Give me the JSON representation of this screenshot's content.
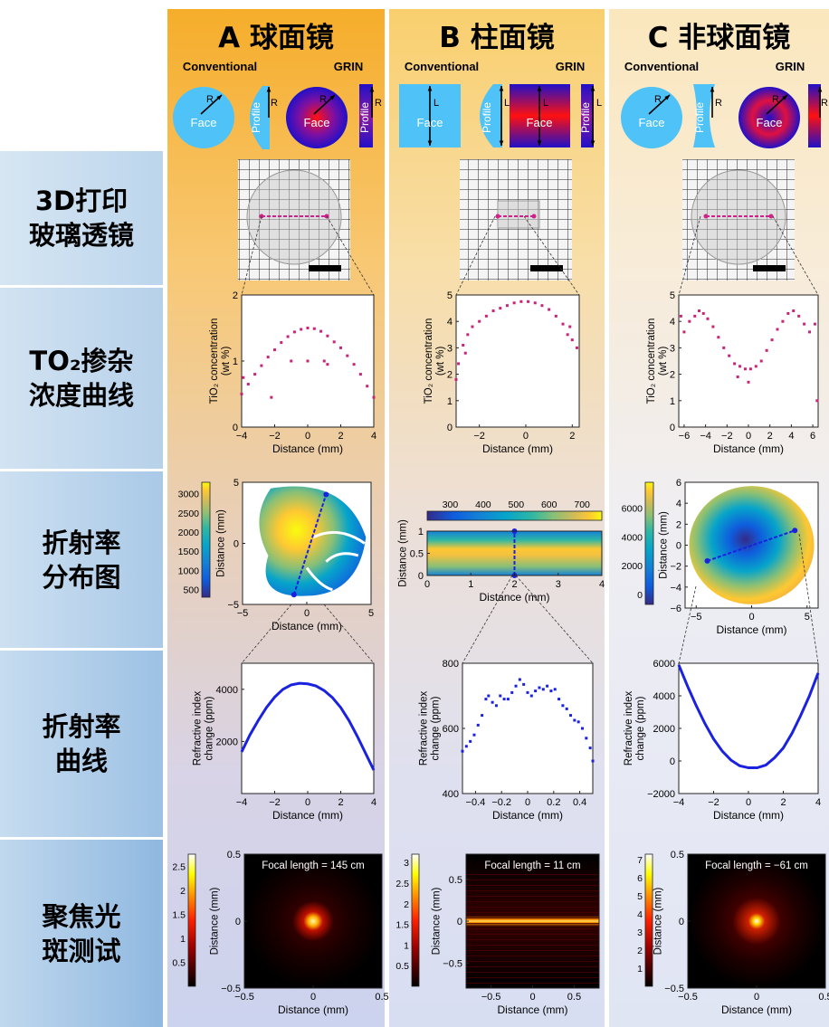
{
  "headers": [
    {
      "title": "A 球面镜",
      "conventional": "Conventional",
      "grin": "GRIN"
    },
    {
      "title": "B 柱面镜",
      "conventional": "Conventional",
      "grin": "GRIN"
    },
    {
      "title": "C 非球面镜",
      "conventional": "Conventional",
      "grin": "GRIN"
    }
  ],
  "icon_labels": {
    "face": "Face",
    "profile": "Profile",
    "radius": "R",
    "length": "L"
  },
  "row_labels": [
    {
      "l1": "3D打印",
      "l2": "玻璃透镜"
    },
    {
      "l1": "TO₂掺杂",
      "l2": "浓度曲线"
    },
    {
      "l1": "折射率",
      "l2": "分布图"
    },
    {
      "l1": "折射率",
      "l2": "曲线"
    },
    {
      "l1": "聚焦光",
      "l2": "斑测试"
    }
  ],
  "colors": {
    "light_blue": "#4fc3f7",
    "grin_blue": "#2010c8",
    "grin_red": "#ff1010",
    "magenta": "#c8247a",
    "blue": "#1a22e0"
  },
  "chart_data": [
    {
      "id": "conc_A",
      "type": "scatter",
      "xlabel": "Distance (mm)",
      "ylabel": [
        "TiO₂ concentration",
        "(wt %)"
      ],
      "xlim": [
        -4,
        4
      ],
      "ylim": [
        0,
        2
      ],
      "xticks": [
        -4,
        -2,
        0,
        2,
        4
      ],
      "yticks": [
        0,
        1,
        2
      ],
      "color": "#c8247a",
      "points": [
        [
          -4,
          0.5
        ],
        [
          -3.6,
          0.65
        ],
        [
          -3.2,
          0.8
        ],
        [
          -2.8,
          0.93
        ],
        [
          -2.4,
          1.06
        ],
        [
          -2,
          1.17
        ],
        [
          -1.6,
          1.28
        ],
        [
          -1.2,
          1.37
        ],
        [
          -0.8,
          1.44
        ],
        [
          -0.4,
          1.48
        ],
        [
          0,
          1.5
        ],
        [
          0.4,
          1.49
        ],
        [
          0.8,
          1.45
        ],
        [
          1.2,
          1.38
        ],
        [
          1.6,
          1.29
        ],
        [
          2,
          1.2
        ],
        [
          2.4,
          1.08
        ],
        [
          2.8,
          0.95
        ],
        [
          3.2,
          0.8
        ],
        [
          3.6,
          0.62
        ],
        [
          4,
          0.45
        ],
        [
          -3.9,
          0.75
        ],
        [
          -2.2,
          0.45
        ],
        [
          -1,
          1.0
        ],
        [
          0,
          1.0
        ],
        [
          1,
          1.0
        ],
        [
          1.2,
          0.95
        ]
      ]
    },
    {
      "id": "conc_B",
      "type": "scatter",
      "xlabel": "Distance (mm)",
      "ylabel": [
        "TiO₂ concentration",
        "(wt %)"
      ],
      "xlim": [
        -3,
        2.3
      ],
      "ylim": [
        0,
        5
      ],
      "xticks": [
        -2,
        0,
        2
      ],
      "yticks": [
        0,
        1,
        2,
        3,
        4,
        5
      ],
      "color": "#c8247a",
      "points": [
        [
          -3,
          1.8
        ],
        [
          -2.9,
          2.4
        ],
        [
          -2.7,
          3.1
        ],
        [
          -2.5,
          3.5
        ],
        [
          -2.3,
          3.8
        ],
        [
          -2,
          4.0
        ],
        [
          -1.7,
          4.2
        ],
        [
          -1.4,
          4.4
        ],
        [
          -1.1,
          4.5
        ],
        [
          -0.8,
          4.6
        ],
        [
          -0.5,
          4.7
        ],
        [
          -0.2,
          4.75
        ],
        [
          0.1,
          4.75
        ],
        [
          0.4,
          4.7
        ],
        [
          0.7,
          4.6
        ],
        [
          1,
          4.45
        ],
        [
          1.3,
          4.2
        ],
        [
          1.6,
          3.9
        ],
        [
          1.8,
          3.5
        ],
        [
          2,
          3.3
        ],
        [
          2.2,
          3.0
        ],
        [
          1.9,
          3.8
        ],
        [
          -2.6,
          2.8
        ]
      ]
    },
    {
      "id": "conc_C",
      "type": "scatter",
      "xlabel": "Distance (mm)",
      "ylabel": [
        "TiO₂ concentration",
        "(wt %)"
      ],
      "xlim": [
        -6.5,
        6.5
      ],
      "ylim": [
        0,
        5
      ],
      "xticks": [
        -6,
        -4,
        -2,
        0,
        2,
        4,
        6
      ],
      "yticks": [
        0,
        1,
        2,
        3,
        4,
        5
      ],
      "color": "#c8247a",
      "points": [
        [
          -6.3,
          4.2
        ],
        [
          -6,
          3.6
        ],
        [
          -5.5,
          4.0
        ],
        [
          -5,
          4.2
        ],
        [
          -4.6,
          4.4
        ],
        [
          -4.2,
          4.3
        ],
        [
          -3.8,
          4.1
        ],
        [
          -3.3,
          3.8
        ],
        [
          -2.8,
          3.4
        ],
        [
          -2.3,
          3.0
        ],
        [
          -1.8,
          2.7
        ],
        [
          -1.3,
          2.4
        ],
        [
          -0.8,
          2.3
        ],
        [
          -0.3,
          2.2
        ],
        [
          0.2,
          2.2
        ],
        [
          0.7,
          2.3
        ],
        [
          1.2,
          2.5
        ],
        [
          1.7,
          2.9
        ],
        [
          2.2,
          3.3
        ],
        [
          2.7,
          3.7
        ],
        [
          3.2,
          4.0
        ],
        [
          3.7,
          4.3
        ],
        [
          4.2,
          4.4
        ],
        [
          4.7,
          4.2
        ],
        [
          5.2,
          3.9
        ],
        [
          5.7,
          3.6
        ],
        [
          6.2,
          3.9
        ],
        [
          6.4,
          1.0
        ],
        [
          0,
          1.7
        ],
        [
          -1,
          1.9
        ]
      ]
    },
    {
      "id": "map_A",
      "type": "heatmap",
      "xlabel": "Distance (mm)",
      "ylabel": "Distance (mm)",
      "xlim": [
        -5,
        5
      ],
      "ylim": [
        -5,
        5
      ],
      "xticks": [
        -5,
        0,
        5
      ],
      "yticks": [
        -5,
        0,
        5
      ],
      "colormap": "parula",
      "crange": [
        300,
        3300
      ],
      "cticks": [
        500,
        1000,
        1500,
        2000,
        2500,
        3000
      ]
    },
    {
      "id": "map_B",
      "type": "heatmap",
      "xlabel": "Distance (mm)",
      "ylabel": "Distance (mm)",
      "xlim": [
        0,
        4
      ],
      "ylim": [
        0,
        1
      ],
      "xticks": [
        0,
        1,
        2,
        3,
        4
      ],
      "yticks": [
        0,
        0.5,
        1
      ],
      "colormap": "parula",
      "crange": [
        230,
        760
      ],
      "cticks": [
        300,
        400,
        500,
        600,
        700
      ]
    },
    {
      "id": "map_C",
      "type": "heatmap",
      "xlabel": "Distance (mm)",
      "ylabel": "Distance (mm)",
      "xlim": [
        -6,
        6
      ],
      "ylim": [
        -6,
        6
      ],
      "xticks": [
        -5,
        0,
        5
      ],
      "yticks": [
        -6,
        -4,
        -2,
        0,
        2,
        4,
        6
      ],
      "colormap": "parula",
      "crange": [
        -700,
        7800
      ],
      "cticks": [
        0,
        2000,
        4000,
        6000
      ]
    },
    {
      "id": "ri_A",
      "type": "line",
      "xlabel": "Distance (mm)",
      "ylabel": [
        "Refractive index",
        "change (ppm)"
      ],
      "xlim": [
        -4,
        4
      ],
      "ylim": [
        0,
        5000
      ],
      "xticks": [
        -4,
        -2,
        0,
        2,
        4
      ],
      "yticks": [
        2000,
        4000
      ],
      "color": "#1a22e0",
      "points": [
        [
          -4,
          1600
        ],
        [
          -3.5,
          2250
        ],
        [
          -3,
          2800
        ],
        [
          -2.5,
          3300
        ],
        [
          -2,
          3700
        ],
        [
          -1.5,
          4000
        ],
        [
          -1,
          4170
        ],
        [
          -0.5,
          4230
        ],
        [
          0,
          4210
        ],
        [
          0.5,
          4130
        ],
        [
          1,
          3950
        ],
        [
          1.5,
          3680
        ],
        [
          2,
          3300
        ],
        [
          2.5,
          2800
        ],
        [
          3,
          2200
        ],
        [
          3.5,
          1550
        ],
        [
          4,
          900
        ]
      ]
    },
    {
      "id": "ri_B",
      "type": "scatter",
      "xlabel": "Distance (mm)",
      "ylabel": [
        "Refractive index",
        "change (ppm)"
      ],
      "xlim": [
        -0.5,
        0.5
      ],
      "ylim": [
        400,
        800
      ],
      "xticks": [
        -0.4,
        -0.2,
        0,
        0.2,
        0.4
      ],
      "yticks": [
        400,
        600,
        800
      ],
      "color": "#1a22e0",
      "points": [
        [
          -0.5,
          530
        ],
        [
          -0.47,
          545
        ],
        [
          -0.44,
          560
        ],
        [
          -0.41,
          580
        ],
        [
          -0.38,
          610
        ],
        [
          -0.35,
          640
        ],
        [
          -0.32,
          690
        ],
        [
          -0.3,
          700
        ],
        [
          -0.27,
          680
        ],
        [
          -0.24,
          670
        ],
        [
          -0.21,
          700
        ],
        [
          -0.18,
          690
        ],
        [
          -0.15,
          690
        ],
        [
          -0.12,
          710
        ],
        [
          -0.09,
          730
        ],
        [
          -0.06,
          750
        ],
        [
          -0.03,
          735
        ],
        [
          0,
          710
        ],
        [
          0.03,
          700
        ],
        [
          0.06,
          715
        ],
        [
          0.09,
          725
        ],
        [
          0.12,
          720
        ],
        [
          0.15,
          730
        ],
        [
          0.18,
          715
        ],
        [
          0.21,
          720
        ],
        [
          0.24,
          690
        ],
        [
          0.27,
          670
        ],
        [
          0.3,
          660
        ],
        [
          0.33,
          640
        ],
        [
          0.36,
          625
        ],
        [
          0.39,
          620
        ],
        [
          0.42,
          600
        ],
        [
          0.45,
          570
        ],
        [
          0.48,
          540
        ],
        [
          0.5,
          500
        ]
      ]
    },
    {
      "id": "ri_C",
      "type": "line",
      "xlabel": "Distance (mm)",
      "ylabel": [
        "Refractive index",
        "change (ppm)"
      ],
      "xlim": [
        -4,
        4
      ],
      "ylim": [
        -2000,
        6000
      ],
      "xticks": [
        -4,
        -2,
        0,
        2,
        4
      ],
      "yticks": [
        -2000,
        0,
        2000,
        4000,
        6000
      ],
      "color": "#1a22e0",
      "points": [
        [
          -4,
          5900
        ],
        [
          -3.5,
          4600
        ],
        [
          -3,
          3400
        ],
        [
          -2.5,
          2300
        ],
        [
          -2,
          1350
        ],
        [
          -1.5,
          600
        ],
        [
          -1,
          50
        ],
        [
          -0.5,
          -300
        ],
        [
          0,
          -420
        ],
        [
          0.5,
          -420
        ],
        [
          1,
          -250
        ],
        [
          1.5,
          200
        ],
        [
          2,
          800
        ],
        [
          2.5,
          1700
        ],
        [
          3,
          2800
        ],
        [
          3.5,
          4000
        ],
        [
          4,
          5400
        ]
      ]
    },
    {
      "id": "spot_A",
      "type": "heatmap",
      "annotation": "Focal length = 145 cm",
      "xlabel": "Distance (mm)",
      "ylabel": "Distance (mm)",
      "xlim": [
        -0.5,
        0.5
      ],
      "ylim": [
        -0.5,
        0.5
      ],
      "xticks": [
        -0.5,
        0,
        0.5
      ],
      "yticks": [
        -0.5,
        0,
        0.5
      ],
      "colormap": "hot",
      "crange": [
        0,
        2.75
      ],
      "cticks": [
        0.5,
        1,
        1.5,
        2,
        2.5
      ]
    },
    {
      "id": "spot_B",
      "type": "heatmap",
      "annotation": "Focal length = 11 cm",
      "xlabel": "Distance (mm)",
      "ylabel": "Distance (mm)",
      "xlim": [
        -0.8,
        0.8
      ],
      "ylim": [
        -0.8,
        0.8
      ],
      "xticks": [
        -0.5,
        0,
        0.5
      ],
      "yticks": [
        -0.5,
        0,
        0.5
      ],
      "colormap": "hot",
      "crange": [
        0,
        3.2
      ],
      "cticks": [
        0.5,
        1,
        1.5,
        2,
        2.5,
        3
      ]
    },
    {
      "id": "spot_C",
      "type": "heatmap",
      "annotation": "Focal length = −61 cm",
      "xlabel": "Distance (mm)",
      "ylabel": "Distance (mm)",
      "xlim": [
        -0.5,
        0.5
      ],
      "ylim": [
        -0.5,
        0.5
      ],
      "xticks": [
        -0.5,
        0,
        0.5
      ],
      "yticks": [
        -0.5,
        0,
        0.5
      ],
      "colormap": "hot",
      "crange": [
        0,
        7.3
      ],
      "cticks": [
        1,
        2,
        3,
        4,
        5,
        6,
        7
      ]
    }
  ]
}
